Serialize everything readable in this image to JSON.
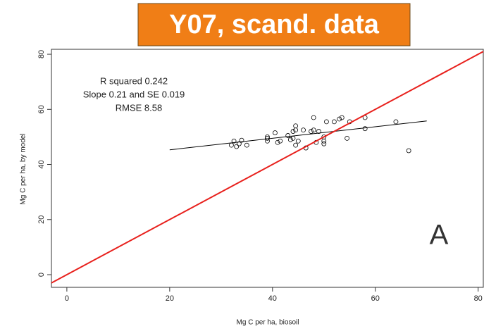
{
  "chart_data": {
    "type": "scatter",
    "title": "Y07, scand. data",
    "x_label": "Mg C per ha, biosoil",
    "y_label": "Mg C per ha, by model",
    "annotations": [
      "R squared  0.242",
      "Slope  0.21  and SE  0.019",
      "RMSE 8.58"
    ],
    "panel_label": "A",
    "xlim": [
      -3,
      81
    ],
    "ylim": [
      -4.6,
      81.8
    ],
    "xticks": [
      0,
      20,
      40,
      60,
      80
    ],
    "yticks": [
      0,
      20,
      40,
      60,
      80
    ],
    "x": [
      32,
      32.5,
      33,
      33.5,
      34,
      35,
      39,
      39,
      39,
      40.5,
      41,
      41.5,
      43,
      43.5,
      44,
      44,
      44.5,
      44.5,
      44.5,
      45,
      46.5,
      46,
      47.5,
      48,
      48,
      48.5,
      49,
      50,
      50,
      50,
      50.5,
      52,
      53,
      53.5,
      55,
      54.5,
      58,
      58,
      64,
      66.5
    ],
    "values": [
      47,
      48.5,
      46.5,
      47.5,
      48.8,
      47,
      48.5,
      49.5,
      50,
      51.5,
      48,
      48.5,
      50.5,
      49,
      49.5,
      52,
      52.5,
      54,
      47,
      48.5,
      46,
      52.5,
      52,
      52.5,
      57,
      48,
      52,
      50,
      48.5,
      47.5,
      55.5,
      55.5,
      56.5,
      57,
      55.5,
      49.5,
      57,
      53,
      55.5,
      45
    ],
    "color": "#000000",
    "fit_line": {
      "x": [
        20,
        70
      ],
      "values": [
        45.3,
        55.8
      ],
      "color": "#000000"
    },
    "identity_line": {
      "x": [
        -3,
        81
      ],
      "values": [
        -3,
        81
      ],
      "color": "#e8201c"
    }
  }
}
